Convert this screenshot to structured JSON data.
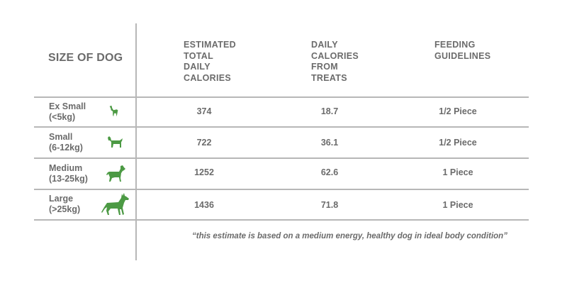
{
  "header": {
    "size_of_dog": "SIZE OF DOG",
    "col1": [
      "ESTIMATED",
      "TOTAL",
      "DAILY",
      "CALORIES"
    ],
    "col2": [
      "DAILY",
      "CALORIES",
      "FROM",
      "TREATS"
    ],
    "col3": [
      "FEEDING",
      "GUIDELINES"
    ]
  },
  "rows": [
    {
      "size": "Ex Small",
      "weight": "(<5kg)",
      "calories": "374",
      "treat_calories": "18.7",
      "guideline": "1/2 Piece",
      "icon": "dog-xsmall-icon"
    },
    {
      "size": "Small",
      "weight": "(6-12kg)",
      "calories": "722",
      "treat_calories": "36.1",
      "guideline": "1/2 Piece",
      "icon": "dog-small-icon"
    },
    {
      "size": "Medium",
      "weight": "(13-25kg)",
      "calories": "1252",
      "treat_calories": "62.6",
      "guideline": "1 Piece",
      "icon": "dog-medium-icon"
    },
    {
      "size": "Large",
      "weight": "(>25kg)",
      "calories": "1436",
      "treat_calories": "71.8",
      "guideline": "1 Piece",
      "icon": "dog-large-icon"
    }
  ],
  "footnote": "“this estimate is based on a medium energy, healthy dog in ideal body condition”",
  "colors": {
    "text": "#6b6b6b",
    "rule": "#b7b7b7",
    "dog_icon": "#4c9a44"
  }
}
